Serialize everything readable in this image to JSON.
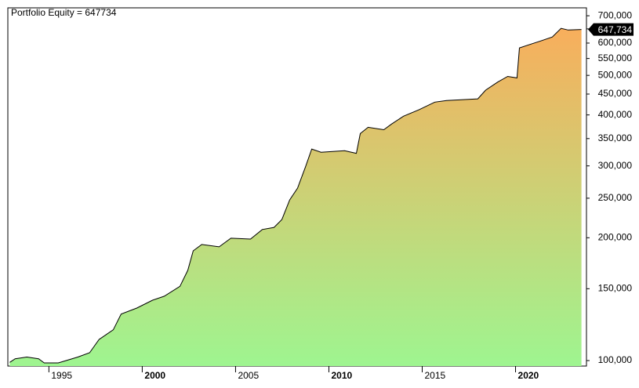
{
  "chart_data": {
    "type": "line",
    "title": "Portfolio Equity = 647734",
    "log_scale": true,
    "x": [
      1992.9,
      1993.19,
      1993.82,
      1994.45,
      1994.75,
      1995.5,
      1995.92,
      1996.55,
      1997.18,
      1997.69,
      1998.45,
      1998.87,
      1999.71,
      2000.55,
      2001.18,
      2002.02,
      2002.44,
      2002.73,
      2003.19,
      2004.12,
      2004.75,
      2005.8,
      2006.43,
      2007.06,
      2007.48,
      2007.9,
      2008.32,
      2008.74,
      2009.08,
      2009.58,
      2010.84,
      2011.47,
      2011.68,
      2012.1,
      2012.94,
      2013.36,
      2013.99,
      2014.83,
      2015.67,
      2016.3,
      2017.98,
      2018.4,
      2019.03,
      2019.58,
      2020.08,
      2020.21,
      2020.71,
      2021.34,
      2021.97,
      2022.44,
      2022.82,
      2023.53
    ],
    "series": [
      {
        "name": "Portfolio Equity",
        "color": "#000000",
        "values": [
          99000,
          101000,
          102000,
          101000,
          98700,
          98700,
          100000,
          102000,
          104500,
          112700,
          119000,
          130000,
          134500,
          140600,
          143800,
          152000,
          166400,
          185800,
          192500,
          190000,
          199500,
          198500,
          209500,
          212000,
          221600,
          247700,
          264600,
          298000,
          330000,
          324000,
          327000,
          322000,
          360000,
          373000,
          368000,
          380000,
          397000,
          412000,
          430000,
          434000,
          438000,
          460000,
          481000,
          497000,
          493000,
          584000,
          594000,
          607000,
          621000,
          652000,
          646000,
          647734
        ]
      }
    ],
    "last_value_label": "647,734",
    "fill_colors": [
      "#9ef590",
      "#f8ae5c"
    ],
    "xlim": [
      1992.8,
      2023.8
    ],
    "xticks": [
      1995,
      2000,
      2005,
      2010,
      2015,
      2020
    ],
    "ylim": [
      96950,
      732000
    ],
    "yticks": [
      {
        "value": 100000,
        "label": "100,000"
      },
      {
        "value": 150000,
        "label": "150,000"
      },
      {
        "value": 200000,
        "label": "200,000"
      },
      {
        "value": 250000,
        "label": "250,000"
      },
      {
        "value": 300000,
        "label": "300,000"
      },
      {
        "value": 350000,
        "label": "350,000"
      },
      {
        "value": 400000,
        "label": "400,000"
      },
      {
        "value": 450000,
        "label": "450,000"
      },
      {
        "value": 500000,
        "label": "500,000"
      },
      {
        "value": 550000,
        "label": "550,000"
      },
      {
        "value": 600000,
        "label": "600,000"
      },
      {
        "value": 650000,
        "label": "650,000"
      },
      {
        "value": 700000,
        "label": "700,000"
      }
    ]
  }
}
